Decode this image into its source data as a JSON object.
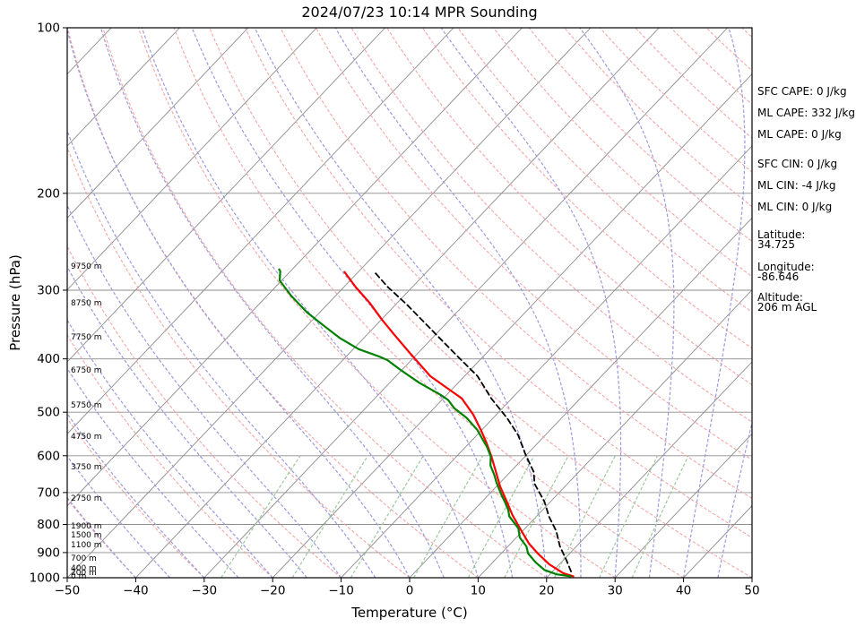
{
  "title": "2024/07/23 10:14 MPR Sounding",
  "axes": {
    "x_label": "Temperature (°C)",
    "y_label": "Pressure (hPa)",
    "x_ticks": [
      "−50",
      "−40",
      "−30",
      "−20",
      "−10",
      "0",
      "10",
      "20",
      "30",
      "40",
      "50"
    ],
    "x_tick_values": [
      -50,
      -40,
      -30,
      -20,
      -10,
      0,
      10,
      20,
      30,
      40,
      50
    ],
    "y_ticks": [
      "100",
      "200",
      "300",
      "400",
      "500",
      "600",
      "700",
      "800",
      "900",
      "1000"
    ],
    "y_tick_values": [
      100,
      200,
      300,
      400,
      500,
      600,
      700,
      800,
      900,
      1000
    ]
  },
  "annotations": [
    "SFC CAPE: 0 J/kg",
    "ML CAPE: 332 J/kg",
    "ML CAPE: 0 J/kg",
    "SFC CIN: 0 J/kg",
    "ML CIN: -4 J/kg",
    "ML CIN: 0 J/kg",
    "Latitude:",
    "34.725",
    "Longitude:",
    "-86.646",
    "Altitude:",
    "206 m AGL"
  ],
  "altitude_labels": [
    {
      "text": "9750 m",
      "pressure": 271
    },
    {
      "text": "8750 m",
      "pressure": 316
    },
    {
      "text": "7750 m",
      "pressure": 365
    },
    {
      "text": "6750 m",
      "pressure": 419
    },
    {
      "text": "5750 m",
      "pressure": 485
    },
    {
      "text": "4750 m",
      "pressure": 553
    },
    {
      "text": "3750 m",
      "pressure": 628
    },
    {
      "text": "2750 m",
      "pressure": 716
    },
    {
      "text": "1900 m",
      "pressure": 805
    },
    {
      "text": "1500 m",
      "pressure": 835
    },
    {
      "text": "1100 m",
      "pressure": 870
    },
    {
      "text": "700 m",
      "pressure": 921
    },
    {
      "text": "400 m",
      "pressure": 959
    },
    {
      "text": "200 m",
      "pressure": 977
    },
    {
      "text": "0 m",
      "pressure": 993
    }
  ],
  "chart_data": {
    "type": "skewt-log-p",
    "title": "2024/07/23 10:14 MPR Sounding",
    "xlabel": "Temperature (°C)",
    "ylabel": "Pressure (hPa)",
    "pressure_range": [
      100,
      1000
    ],
    "temperature_range": [
      -50,
      50
    ],
    "skew_slope": 0.951,
    "grid": true,
    "series": [
      {
        "name": "temperature",
        "color": "#ff0000",
        "style": "solid",
        "width": 2.2,
        "points": [
          [
            278,
            -52.0
          ],
          [
            296,
            -48.3
          ],
          [
            316,
            -44.1
          ],
          [
            340,
            -39.8
          ],
          [
            361,
            -36.1
          ],
          [
            389,
            -31.4
          ],
          [
            430,
            -25.0
          ],
          [
            472,
            -17.3
          ],
          [
            505,
            -13.4
          ],
          [
            539,
            -10.1
          ],
          [
            570,
            -7.4
          ],
          [
            602,
            -4.9
          ],
          [
            642,
            -2.1
          ],
          [
            682,
            0.5
          ],
          [
            727,
            3.6
          ],
          [
            769,
            6.3
          ],
          [
            814,
            9.3
          ],
          [
            867,
            12.7
          ],
          [
            904,
            15.4
          ],
          [
            945,
            18.5
          ],
          [
            981,
            21.8
          ],
          [
            994,
            23.7
          ]
        ]
      },
      {
        "name": "dewpoint",
        "color": "#008000",
        "style": "solid",
        "width": 2.2,
        "points": [
          [
            275,
            -61.9
          ],
          [
            277,
            -61.5
          ],
          [
            288,
            -60.3
          ],
          [
            307,
            -56.5
          ],
          [
            329,
            -51.9
          ],
          [
            347,
            -47.8
          ],
          [
            367,
            -43.4
          ],
          [
            384,
            -39.2
          ],
          [
            396,
            -35.2
          ],
          [
            402,
            -33.5
          ],
          [
            419,
            -30.2
          ],
          [
            442,
            -25.7
          ],
          [
            465,
            -20.9
          ],
          [
            475,
            -19.1
          ],
          [
            492,
            -17.0
          ],
          [
            512,
            -13.9
          ],
          [
            539,
            -10.6
          ],
          [
            561,
            -8.5
          ],
          [
            578,
            -6.9
          ],
          [
            602,
            -5.0
          ],
          [
            625,
            -3.8
          ],
          [
            652,
            -1.8
          ],
          [
            672,
            -0.5
          ],
          [
            704,
            1.7
          ],
          [
            727,
            3.3
          ],
          [
            753,
            5.0
          ],
          [
            773,
            6.0
          ],
          [
            813,
            9.0
          ],
          [
            845,
            10.5
          ],
          [
            877,
            12.7
          ],
          [
            903,
            13.9
          ],
          [
            937,
            16.2
          ],
          [
            968,
            18.6
          ],
          [
            986,
            21.0
          ],
          [
            992,
            22.8
          ],
          [
            994,
            23.3
          ]
        ]
      },
      {
        "name": "parcel",
        "color": "#000000",
        "style": "dashed",
        "width": 1.8,
        "points": [
          [
            974,
            22.7
          ],
          [
            928,
            20.4
          ],
          [
            877,
            17.6
          ],
          [
            822,
            14.9
          ],
          [
            775,
            11.9
          ],
          [
            727,
            9.1
          ],
          [
            675,
            5.2
          ],
          [
            642,
            3.4
          ],
          [
            597,
            -0.2
          ],
          [
            550,
            -4.0
          ],
          [
            513,
            -7.9
          ],
          [
            472,
            -13.0
          ],
          [
            430,
            -18.1
          ],
          [
            399,
            -23.2
          ],
          [
            370,
            -28.3
          ],
          [
            341,
            -33.8
          ],
          [
            318,
            -38.5
          ],
          [
            296,
            -43.6
          ],
          [
            279,
            -47.4
          ]
        ]
      }
    ],
    "background": {
      "pressure_gridlines": {
        "color": "#8c8c8c",
        "levels": [
          100,
          200,
          300,
          400,
          500,
          600,
          700,
          800,
          900,
          1000
        ]
      },
      "isotherms": {
        "color": "#8c8c8c",
        "start": -120,
        "end": 50,
        "step": 10
      },
      "dry_adiabats": {
        "color": "#f6a4a4",
        "theta_start": -40,
        "theta_end": 260,
        "step": 10
      },
      "moist_adiabats": {
        "color": "#9a9ae0",
        "t0_start": -40,
        "t0_end": 90,
        "step": 5
      },
      "mixing_ratios": {
        "color": "#9aca9a",
        "values": [
          0.0004,
          0.001,
          0.002,
          0.004,
          0.007,
          0.01,
          0.016,
          0.024,
          0.032
        ],
        "pressure_top": 600
      }
    }
  }
}
